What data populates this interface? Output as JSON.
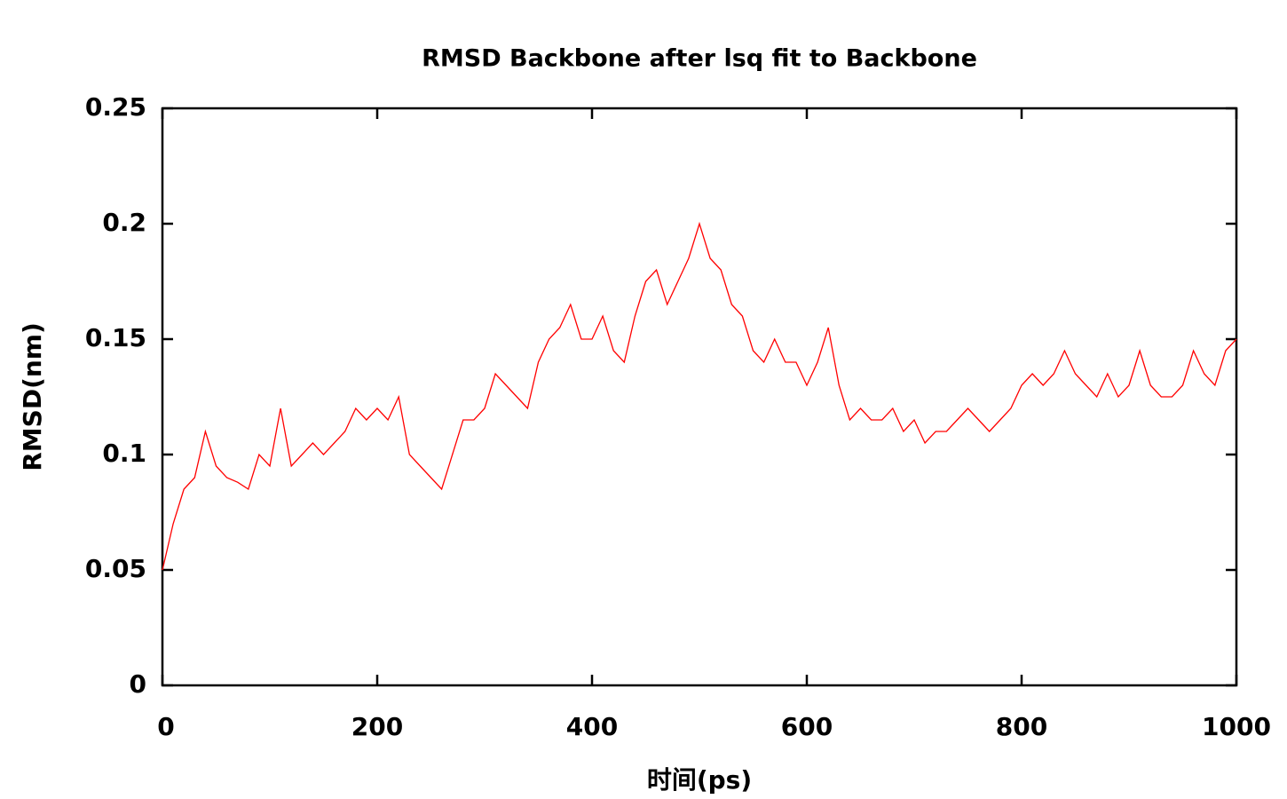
{
  "chart_data": {
    "type": "line",
    "title": "RMSD Backbone after lsq fit to Backbone",
    "x_label": "时间(ps)",
    "y_label": "RMSD(nm)",
    "x": [
      0,
      10,
      20,
      30,
      40,
      50,
      60,
      70,
      80,
      90,
      100,
      110,
      120,
      130,
      140,
      150,
      160,
      170,
      180,
      190,
      200,
      210,
      220,
      230,
      240,
      250,
      260,
      270,
      280,
      290,
      300,
      310,
      320,
      330,
      340,
      350,
      360,
      370,
      380,
      390,
      400,
      410,
      420,
      430,
      440,
      450,
      460,
      470,
      480,
      490,
      500,
      510,
      520,
      530,
      540,
      550,
      560,
      570,
      580,
      590,
      600,
      610,
      620,
      630,
      640,
      650,
      660,
      670,
      680,
      690,
      700,
      710,
      720,
      730,
      740,
      750,
      760,
      770,
      780,
      790,
      800,
      810,
      820,
      830,
      840,
      850,
      860,
      870,
      880,
      890,
      900,
      910,
      920,
      930,
      940,
      950,
      960,
      970,
      980,
      990,
      1000
    ],
    "series": [
      {
        "name": "RMSD",
        "color": "#ff0000",
        "values": [
          0.05,
          0.07,
          0.085,
          0.09,
          0.11,
          0.095,
          0.09,
          0.088,
          0.085,
          0.1,
          0.095,
          0.12,
          0.095,
          0.1,
          0.105,
          0.1,
          0.105,
          0.11,
          0.12,
          0.115,
          0.12,
          0.115,
          0.125,
          0.1,
          0.095,
          0.09,
          0.085,
          0.1,
          0.115,
          0.115,
          0.12,
          0.135,
          0.13,
          0.125,
          0.12,
          0.14,
          0.15,
          0.155,
          0.165,
          0.15,
          0.15,
          0.16,
          0.145,
          0.14,
          0.16,
          0.175,
          0.18,
          0.165,
          0.175,
          0.185,
          0.2,
          0.185,
          0.18,
          0.165,
          0.16,
          0.145,
          0.14,
          0.15,
          0.14,
          0.14,
          0.13,
          0.14,
          0.155,
          0.13,
          0.115,
          0.12,
          0.115,
          0.115,
          0.12,
          0.11,
          0.115,
          0.105,
          0.11,
          0.11,
          0.115,
          0.12,
          0.115,
          0.11,
          0.115,
          0.12,
          0.13,
          0.135,
          0.13,
          0.135,
          0.145,
          0.135,
          0.13,
          0.125,
          0.135,
          0.125,
          0.13,
          0.145,
          0.13,
          0.125,
          0.125,
          0.13,
          0.145,
          0.135,
          0.13,
          0.145,
          0.15
        ]
      }
    ],
    "xlim": [
      0,
      1000
    ],
    "xticks": [
      0,
      200,
      400,
      600,
      800,
      1000
    ],
    "ylim": [
      0,
      0.25
    ],
    "yticks": [
      0,
      0.05,
      0.1,
      0.15,
      0.2,
      0.25
    ]
  }
}
